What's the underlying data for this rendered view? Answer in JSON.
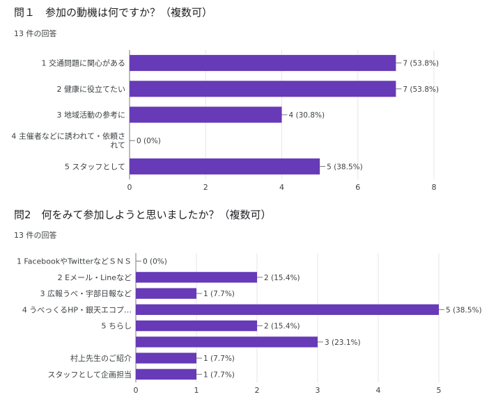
{
  "q1": {
    "title": "問１　参加の動機は何ですか？（複数可）",
    "response_count": "13 件の回答"
  },
  "q2": {
    "title": "問2　何をみて参加しようと思いましたか？（複数可）",
    "response_count": "13 件の回答"
  },
  "colors": {
    "bar": "#673ab7",
    "grid": "#e6e6e6",
    "text": "#3c4043"
  },
  "chart_data": [
    {
      "type": "bar",
      "orientation": "horizontal",
      "categories": [
        "1 交通問題に関心がある",
        [
          "2 健康に役立てたい"
        ],
        "3 地域活動の参考に",
        "4 主催者などに誘われて・依頼されて",
        "5 スタッフとして"
      ],
      "category_lines": [
        [
          "1 交通問題に関心がある"
        ],
        [
          "2 健康に役立てたい"
        ],
        [
          "3 地域活動の参考に"
        ],
        [
          "4 主催者などに誘われて・依頼さ",
          "れて"
        ],
        [
          "5 スタッフとして"
        ]
      ],
      "values": [
        7,
        7,
        4,
        0,
        5
      ],
      "value_labels": [
        "7 (53.8%)",
        "7 (53.8%)",
        "4 (30.8%)",
        "0 (0%)",
        "5 (38.5%)"
      ],
      "xlim": [
        0,
        8
      ],
      "xticks": [
        0,
        2,
        4,
        6,
        8
      ],
      "grid": true
    },
    {
      "type": "bar",
      "orientation": "horizontal",
      "categories": [
        "1 FacebookやTwitterなどＳＮＳ",
        "2 Eメール・Lineなど",
        "3 広報うべ・宇部日報など",
        "4 うべっくるHP・銀天エコプ…",
        "5 ちらし",
        "",
        "村上先生のご紹介",
        "スタッフとして企画担当"
      ],
      "category_lines": [
        [
          "1 FacebookやTwitterなどＳＮＳ"
        ],
        [
          "2 Eメール・Lineなど"
        ],
        [
          "3 広報うべ・宇部日報など"
        ],
        [
          "4 うべっくるHP・銀天エコプ…"
        ],
        [
          "5 ちらし"
        ],
        [
          ""
        ],
        [
          "村上先生のご紹介"
        ],
        [
          "スタッフとして企画担当"
        ]
      ],
      "values": [
        0,
        2,
        1,
        5,
        2,
        3,
        1,
        1
      ],
      "value_labels": [
        "0 (0%)",
        "2 (15.4%)",
        "1 (7.7%)",
        "5 (38.5%)",
        "2 (15.4%)",
        "3 (23.1%)",
        "1 (7.7%)",
        "1 (7.7%)"
      ],
      "xlim": [
        0,
        5
      ],
      "xticks": [
        0,
        1,
        2,
        3,
        4,
        5
      ],
      "grid": true
    }
  ]
}
